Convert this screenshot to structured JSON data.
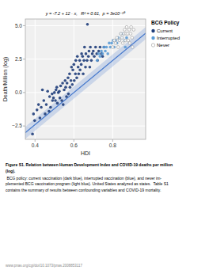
{
  "chart_data": {
    "type": "scatter",
    "xlabel": "HDI",
    "ylabel": "Death/Million (log)",
    "xlim": [
      0.35,
      0.97
    ],
    "ylim": [
      -3.5,
      5.5
    ],
    "xticks": [
      0.4,
      0.6,
      0.8
    ],
    "yticks": [
      {
        "value": -2.5,
        "label": "−2.5"
      },
      {
        "value": 0,
        "label": "0.0"
      },
      2.5,
      {
        "value": 5,
        "label": "5.0"
      }
    ],
    "grid": true,
    "legend": "right",
    "legend_title": "BCG Policy",
    "annotations": [
      "y = -7.2 + 12 · x,   R² = 0.61,  p = 3e10⁻³⁹"
    ],
    "title_lines": [
      "Figure S1. Relation between Human Development Index and COVID-19 deaths per million",
      "(log)."
    ],
    "caption_lines": [
      " BCG policy: current vaccination (dark blue), interrupted vaccination (blue), and never im-",
      "plemented BCG vaccination program (light blue). United States analyzed as states.  Table S1",
      "contains the summary of results between confounding variables and COVID-19 mortality."
    ],
    "source": "www.pnas.org/cgi/doi/10.1073/pnas.2008853117",
    "regression": {
      "color": "#4477cc",
      "x": [
        0.35,
        0.97
      ],
      "values": [
        -3.0,
        4.44
      ],
      "lower": [
        -3.45,
        3.99
      ],
      "upper": [
        -2.55,
        4.89
      ]
    },
    "series": [
      {
        "name": "Current",
        "color": "#1f3d7a",
        "x": [
          0.387,
          0.392,
          0.398,
          0.41,
          0.418,
          0.425,
          0.432,
          0.438,
          0.445,
          0.452,
          0.458,
          0.465,
          0.472,
          0.475,
          0.48,
          0.488,
          0.49,
          0.495,
          0.5,
          0.505,
          0.508,
          0.512,
          0.515,
          0.52,
          0.525,
          0.528,
          0.532,
          0.538,
          0.542,
          0.545,
          0.55,
          0.555,
          0.558,
          0.562,
          0.565,
          0.57,
          0.572,
          0.578,
          0.58,
          0.585,
          0.588,
          0.592,
          0.595,
          0.6,
          0.602,
          0.608,
          0.61,
          0.615,
          0.618,
          0.622,
          0.625,
          0.63,
          0.632,
          0.638,
          0.64,
          0.645,
          0.648,
          0.652,
          0.655,
          0.66,
          0.662,
          0.668,
          0.67,
          0.675,
          0.678,
          0.682,
          0.685,
          0.69,
          0.695,
          0.7,
          0.705,
          0.712,
          0.718,
          0.722,
          0.728,
          0.735,
          0.742,
          0.748,
          0.755
        ],
        "values": [
          -3.1,
          -1.6,
          -2.1,
          -1.3,
          -0.9,
          -1.9,
          -1.1,
          0.2,
          -0.6,
          -1.6,
          -0.9,
          0.1,
          -1.4,
          -0.3,
          -1.1,
          -0.1,
          -0.6,
          -0.4,
          0.0,
          -0.6,
          0.2,
          0.4,
          -0.8,
          0.0,
          0.1,
          -0.4,
          0.5,
          -0.6,
          0.7,
          -0.9,
          0.2,
          0.9,
          0.4,
          -0.3,
          0.7,
          1.1,
          -0.1,
          1.4,
          0.4,
          0.9,
          1.9,
          0.6,
          1.7,
          2.1,
          0.9,
          1.4,
          2.4,
          1.1,
          2.7,
          1.9,
          1.4,
          2.4,
          1.7,
          2.1,
          2.9,
          2.7,
          1.4,
          2.4,
          3.4,
          1.9,
          2.9,
          2.4,
          5.1,
          2.7,
          3.1,
          1.9,
          3.4,
          2.4,
          2.9,
          3.1,
          2.7,
          3.4,
          2.9,
          2.4,
          3.1,
          3.4,
          2.9,
          2.7,
          3.4
        ]
      },
      {
        "name": "Interrupted",
        "color": "#5b9bd5",
        "x": [
          0.72,
          0.728,
          0.735,
          0.742,
          0.748,
          0.755,
          0.762,
          0.768,
          0.775,
          0.782,
          0.788,
          0.795,
          0.802,
          0.808,
          0.815,
          0.822,
          0.828,
          0.835,
          0.842,
          0.848,
          0.855,
          0.862,
          0.865,
          0.872
        ],
        "values": [
          2.4,
          2.9,
          2.7,
          3.1,
          2.9,
          3.4,
          3.1,
          3.4,
          2.9,
          3.7,
          3.4,
          3.7,
          3.9,
          3.4,
          3.9,
          3.7,
          4.1,
          3.9,
          4.4,
          4.1,
          4.4,
          3.9,
          3.4,
          4.1
        ]
      },
      {
        "name": "Never",
        "color": "#ffffff",
        "x": [
          0.8,
          0.808,
          0.815,
          0.822,
          0.828,
          0.835,
          0.842,
          0.848,
          0.852,
          0.858,
          0.862,
          0.865,
          0.87,
          0.872,
          0.878,
          0.88,
          0.885,
          0.888,
          0.892,
          0.895,
          0.9,
          0.902,
          0.908
        ],
        "values": [
          3.4,
          3.9,
          3.7,
          4.1,
          3.4,
          3.9,
          4.4,
          4.1,
          3.7,
          4.4,
          4.7,
          3.9,
          4.4,
          4.9,
          4.4,
          3.9,
          4.7,
          3.7,
          4.4,
          4.9,
          4.1,
          3.4,
          4.7
        ]
      }
    ]
  }
}
